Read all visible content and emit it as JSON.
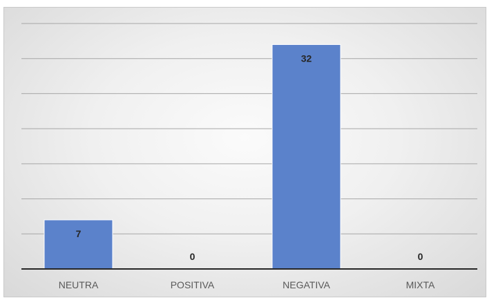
{
  "chart_data": {
    "type": "bar",
    "categories": [
      "NEUTRA",
      "POSITIVA",
      "NEGATIVA",
      "MIXTA"
    ],
    "values": [
      7,
      0,
      32,
      0
    ],
    "title": "",
    "xlabel": "",
    "ylabel": "",
    "ylim": [
      0,
      35
    ],
    "grid": true,
    "legend": "none",
    "bar_color": "#5b82cb",
    "bar_edge_color": "#ffffff",
    "gridline_color": "#a6a6a6",
    "axis_color": "#262626"
  }
}
